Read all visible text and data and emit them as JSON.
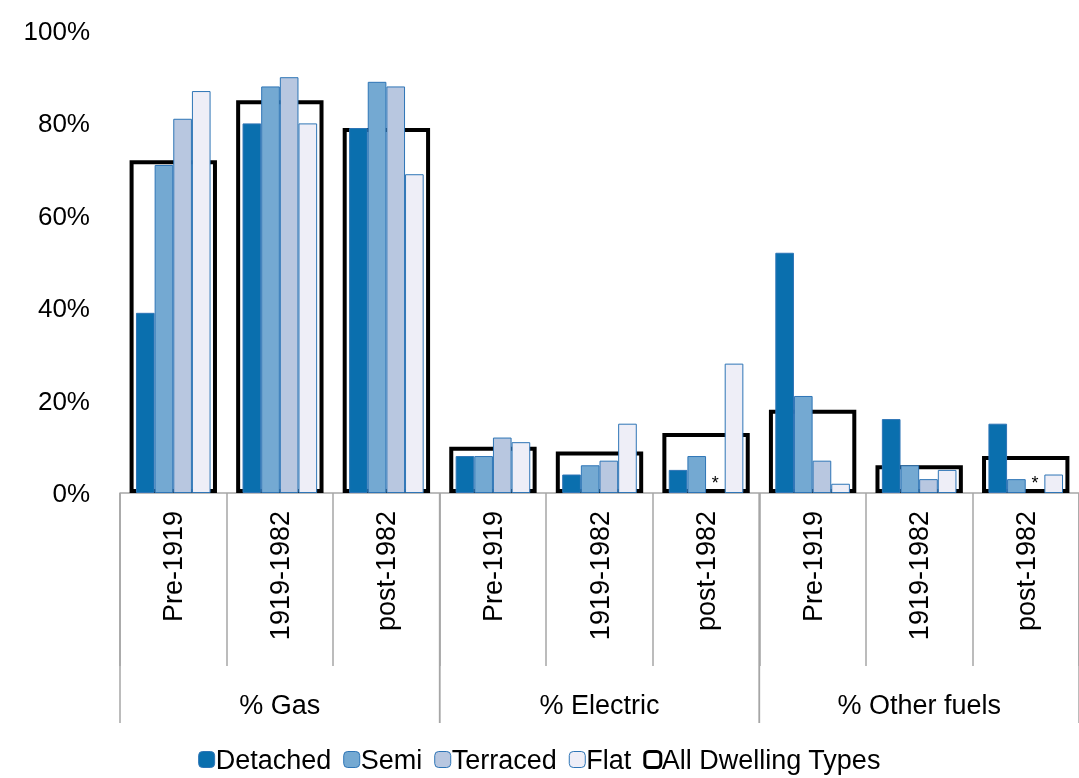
{
  "chart_data": {
    "type": "bar",
    "categories": [
      "Pre-1919",
      "1919-1982",
      "post-1982",
      "Pre-1919",
      "1919-1982",
      "post-1982",
      "Pre-1919",
      "1919-1982",
      "post-1982"
    ],
    "annotations": [
      "% Gas",
      "% Electric",
      "% Other fuels"
    ],
    "series": [
      {
        "name": "Detached",
        "color": "#0a6fae",
        "values": [
          39,
          80,
          79,
          8,
          4,
          5,
          52,
          16,
          15
        ]
      },
      {
        "name": "Semi",
        "color": "#74a9d2",
        "values": [
          71,
          88,
          89,
          8,
          6,
          8,
          21,
          6,
          3
        ]
      },
      {
        "name": "Terraced",
        "color": "#b8c7e0",
        "values": [
          81,
          90,
          88,
          12,
          7,
          null,
          7,
          3,
          null
        ],
        "value_labels": [
          null,
          null,
          null,
          null,
          null,
          "*",
          null,
          null,
          "*"
        ]
      },
      {
        "name": "Flat",
        "color": "#eeeef7",
        "values": [
          87,
          80,
          69,
          11,
          15,
          28,
          2,
          5,
          4
        ]
      },
      {
        "name": "All Dwelling Types",
        "color": "#000000",
        "line_style": "solid",
        "values": [
          72,
          85,
          79,
          10,
          9,
          13,
          18,
          6,
          8
        ]
      }
    ],
    "ylim": [
      0,
      100
    ],
    "yticks": [
      {
        "value": 0,
        "label": "0%"
      },
      {
        "value": 20,
        "label": "20%"
      },
      {
        "value": 40,
        "label": "40%"
      },
      {
        "value": 60,
        "label": "60%"
      },
      {
        "value": 80,
        "label": "80%"
      },
      {
        "value": 100,
        "label": "100%"
      }
    ],
    "grid": false,
    "legend": "bottom"
  }
}
